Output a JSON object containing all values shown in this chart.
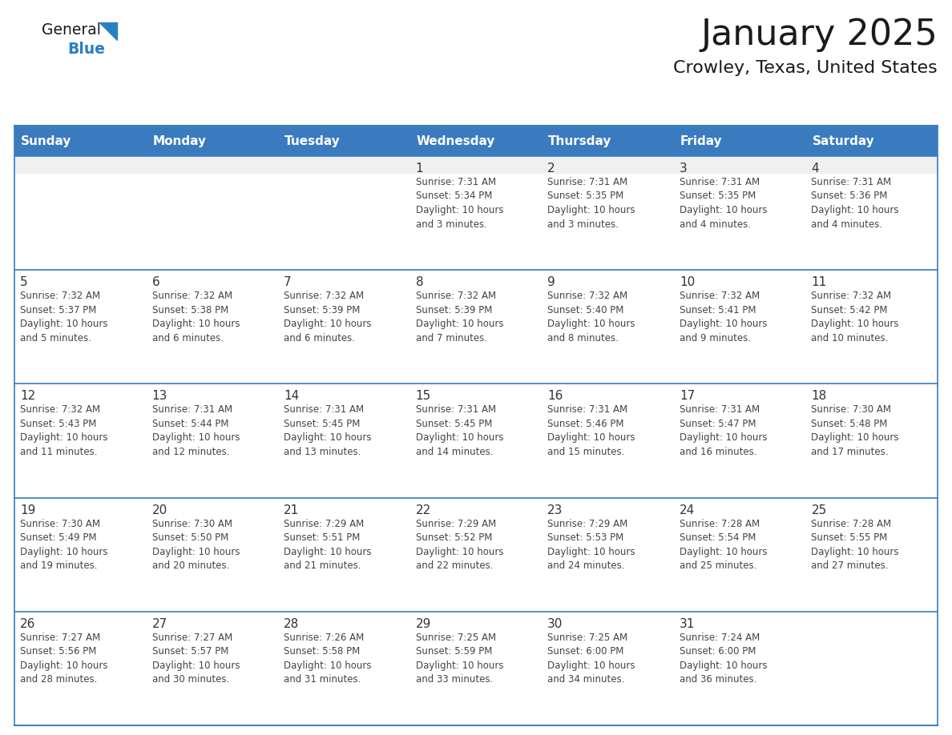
{
  "title": "January 2025",
  "subtitle": "Crowley, Texas, United States",
  "header_bg_color": "#3a7bbf",
  "header_text_color": "#ffffff",
  "cell_bg_color": "#ffffff",
  "row1_top_bg": "#f0f0f0",
  "border_color": "#3a7bbf",
  "row_divider_color": "#3a7bbf",
  "days_of_week": [
    "Sunday",
    "Monday",
    "Tuesday",
    "Wednesday",
    "Thursday",
    "Friday",
    "Saturday"
  ],
  "title_color": "#1a1a1a",
  "subtitle_color": "#1a1a1a",
  "logo_general_color": "#1a1a1a",
  "logo_blue_color": "#2a7fc1",
  "cell_text_color": "#444444",
  "day_num_color": "#333333",
  "calendar_data": [
    [
      "",
      "",
      "",
      "1\nSunrise: 7:31 AM\nSunset: 5:34 PM\nDaylight: 10 hours\nand 3 minutes.",
      "2\nSunrise: 7:31 AM\nSunset: 5:35 PM\nDaylight: 10 hours\nand 3 minutes.",
      "3\nSunrise: 7:31 AM\nSunset: 5:35 PM\nDaylight: 10 hours\nand 4 minutes.",
      "4\nSunrise: 7:31 AM\nSunset: 5:36 PM\nDaylight: 10 hours\nand 4 minutes."
    ],
    [
      "5\nSunrise: 7:32 AM\nSunset: 5:37 PM\nDaylight: 10 hours\nand 5 minutes.",
      "6\nSunrise: 7:32 AM\nSunset: 5:38 PM\nDaylight: 10 hours\nand 6 minutes.",
      "7\nSunrise: 7:32 AM\nSunset: 5:39 PM\nDaylight: 10 hours\nand 6 minutes.",
      "8\nSunrise: 7:32 AM\nSunset: 5:39 PM\nDaylight: 10 hours\nand 7 minutes.",
      "9\nSunrise: 7:32 AM\nSunset: 5:40 PM\nDaylight: 10 hours\nand 8 minutes.",
      "10\nSunrise: 7:32 AM\nSunset: 5:41 PM\nDaylight: 10 hours\nand 9 minutes.",
      "11\nSunrise: 7:32 AM\nSunset: 5:42 PM\nDaylight: 10 hours\nand 10 minutes."
    ],
    [
      "12\nSunrise: 7:32 AM\nSunset: 5:43 PM\nDaylight: 10 hours\nand 11 minutes.",
      "13\nSunrise: 7:31 AM\nSunset: 5:44 PM\nDaylight: 10 hours\nand 12 minutes.",
      "14\nSunrise: 7:31 AM\nSunset: 5:45 PM\nDaylight: 10 hours\nand 13 minutes.",
      "15\nSunrise: 7:31 AM\nSunset: 5:45 PM\nDaylight: 10 hours\nand 14 minutes.",
      "16\nSunrise: 7:31 AM\nSunset: 5:46 PM\nDaylight: 10 hours\nand 15 minutes.",
      "17\nSunrise: 7:31 AM\nSunset: 5:47 PM\nDaylight: 10 hours\nand 16 minutes.",
      "18\nSunrise: 7:30 AM\nSunset: 5:48 PM\nDaylight: 10 hours\nand 17 minutes."
    ],
    [
      "19\nSunrise: 7:30 AM\nSunset: 5:49 PM\nDaylight: 10 hours\nand 19 minutes.",
      "20\nSunrise: 7:30 AM\nSunset: 5:50 PM\nDaylight: 10 hours\nand 20 minutes.",
      "21\nSunrise: 7:29 AM\nSunset: 5:51 PM\nDaylight: 10 hours\nand 21 minutes.",
      "22\nSunrise: 7:29 AM\nSunset: 5:52 PM\nDaylight: 10 hours\nand 22 minutes.",
      "23\nSunrise: 7:29 AM\nSunset: 5:53 PM\nDaylight: 10 hours\nand 24 minutes.",
      "24\nSunrise: 7:28 AM\nSunset: 5:54 PM\nDaylight: 10 hours\nand 25 minutes.",
      "25\nSunrise: 7:28 AM\nSunset: 5:55 PM\nDaylight: 10 hours\nand 27 minutes."
    ],
    [
      "26\nSunrise: 7:27 AM\nSunset: 5:56 PM\nDaylight: 10 hours\nand 28 minutes.",
      "27\nSunrise: 7:27 AM\nSunset: 5:57 PM\nDaylight: 10 hours\nand 30 minutes.",
      "28\nSunrise: 7:26 AM\nSunset: 5:58 PM\nDaylight: 10 hours\nand 31 minutes.",
      "29\nSunrise: 7:25 AM\nSunset: 5:59 PM\nDaylight: 10 hours\nand 33 minutes.",
      "30\nSunrise: 7:25 AM\nSunset: 6:00 PM\nDaylight: 10 hours\nand 34 minutes.",
      "31\nSunrise: 7:24 AM\nSunset: 6:00 PM\nDaylight: 10 hours\nand 36 minutes.",
      ""
    ]
  ],
  "fig_width": 11.88,
  "fig_height": 9.18,
  "dpi": 100
}
